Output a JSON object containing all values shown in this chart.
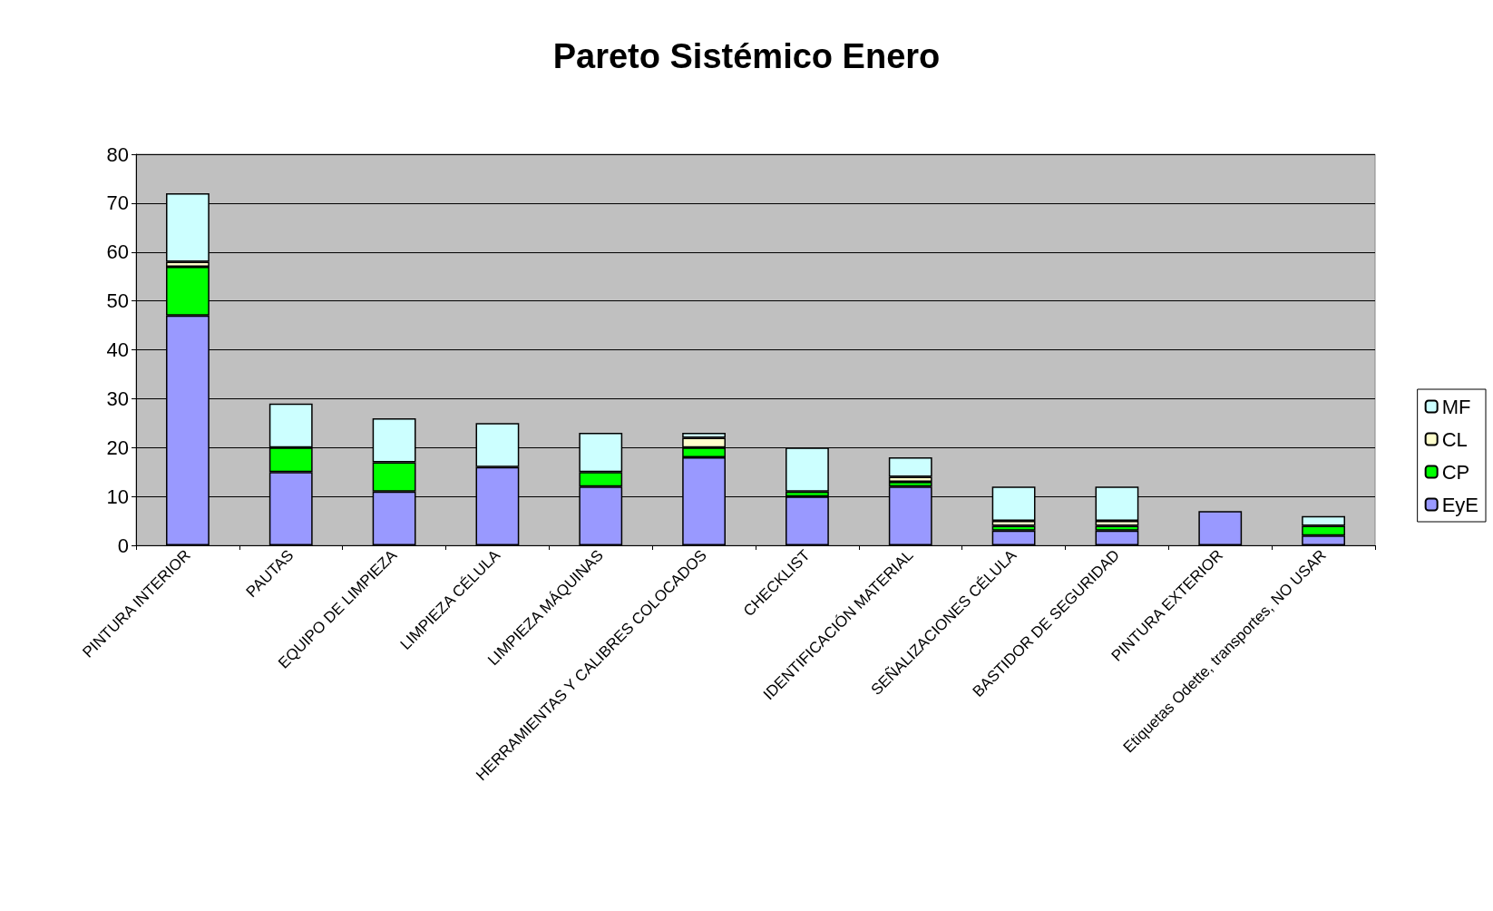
{
  "chart_data": {
    "type": "bar",
    "title": "Pareto Sistémico Enero",
    "stacked": true,
    "categories": [
      "PINTURA INTERIOR",
      "PAUTAS",
      "EQUIPO DE LIMPIEZA",
      "LIMPIEZA CÉLULA",
      "LIMPIEZA MÁQUINAS",
      "HERRAMIENTAS Y CALIBRES COLOCADOS",
      "CHECKLIST",
      "IDENTIFICACIÓN MATERIAL",
      "SEÑALIZACIONES CÉLULA",
      "BASTIDOR DE SEGURIDAD",
      "PINTURA EXTERIOR",
      "Etiquetas Odette, transportes, NO USAR"
    ],
    "series": [
      {
        "name": "EyE",
        "color": "#9999ff",
        "values": [
          47,
          15,
          11,
          16,
          12,
          18,
          10,
          12,
          3,
          3,
          7,
          2
        ]
      },
      {
        "name": "CP",
        "color": "#00ff00",
        "values": [
          10,
          5,
          6,
          0,
          3,
          2,
          1,
          1,
          1,
          1,
          0,
          2
        ]
      },
      {
        "name": "CL",
        "color": "#ffffcc",
        "values": [
          1,
          0,
          0,
          0,
          0,
          2,
          0,
          1,
          1,
          1,
          0,
          0
        ]
      },
      {
        "name": "MF",
        "color": "#ccffff",
        "values": [
          14,
          9,
          9,
          9,
          8,
          1,
          9,
          4,
          7,
          7,
          0,
          2
        ]
      }
    ],
    "ylim": [
      0,
      80
    ],
    "yticks": [
      0,
      10,
      20,
      30,
      40,
      50,
      60,
      70,
      80
    ],
    "grid": "y",
    "legend": "right"
  }
}
